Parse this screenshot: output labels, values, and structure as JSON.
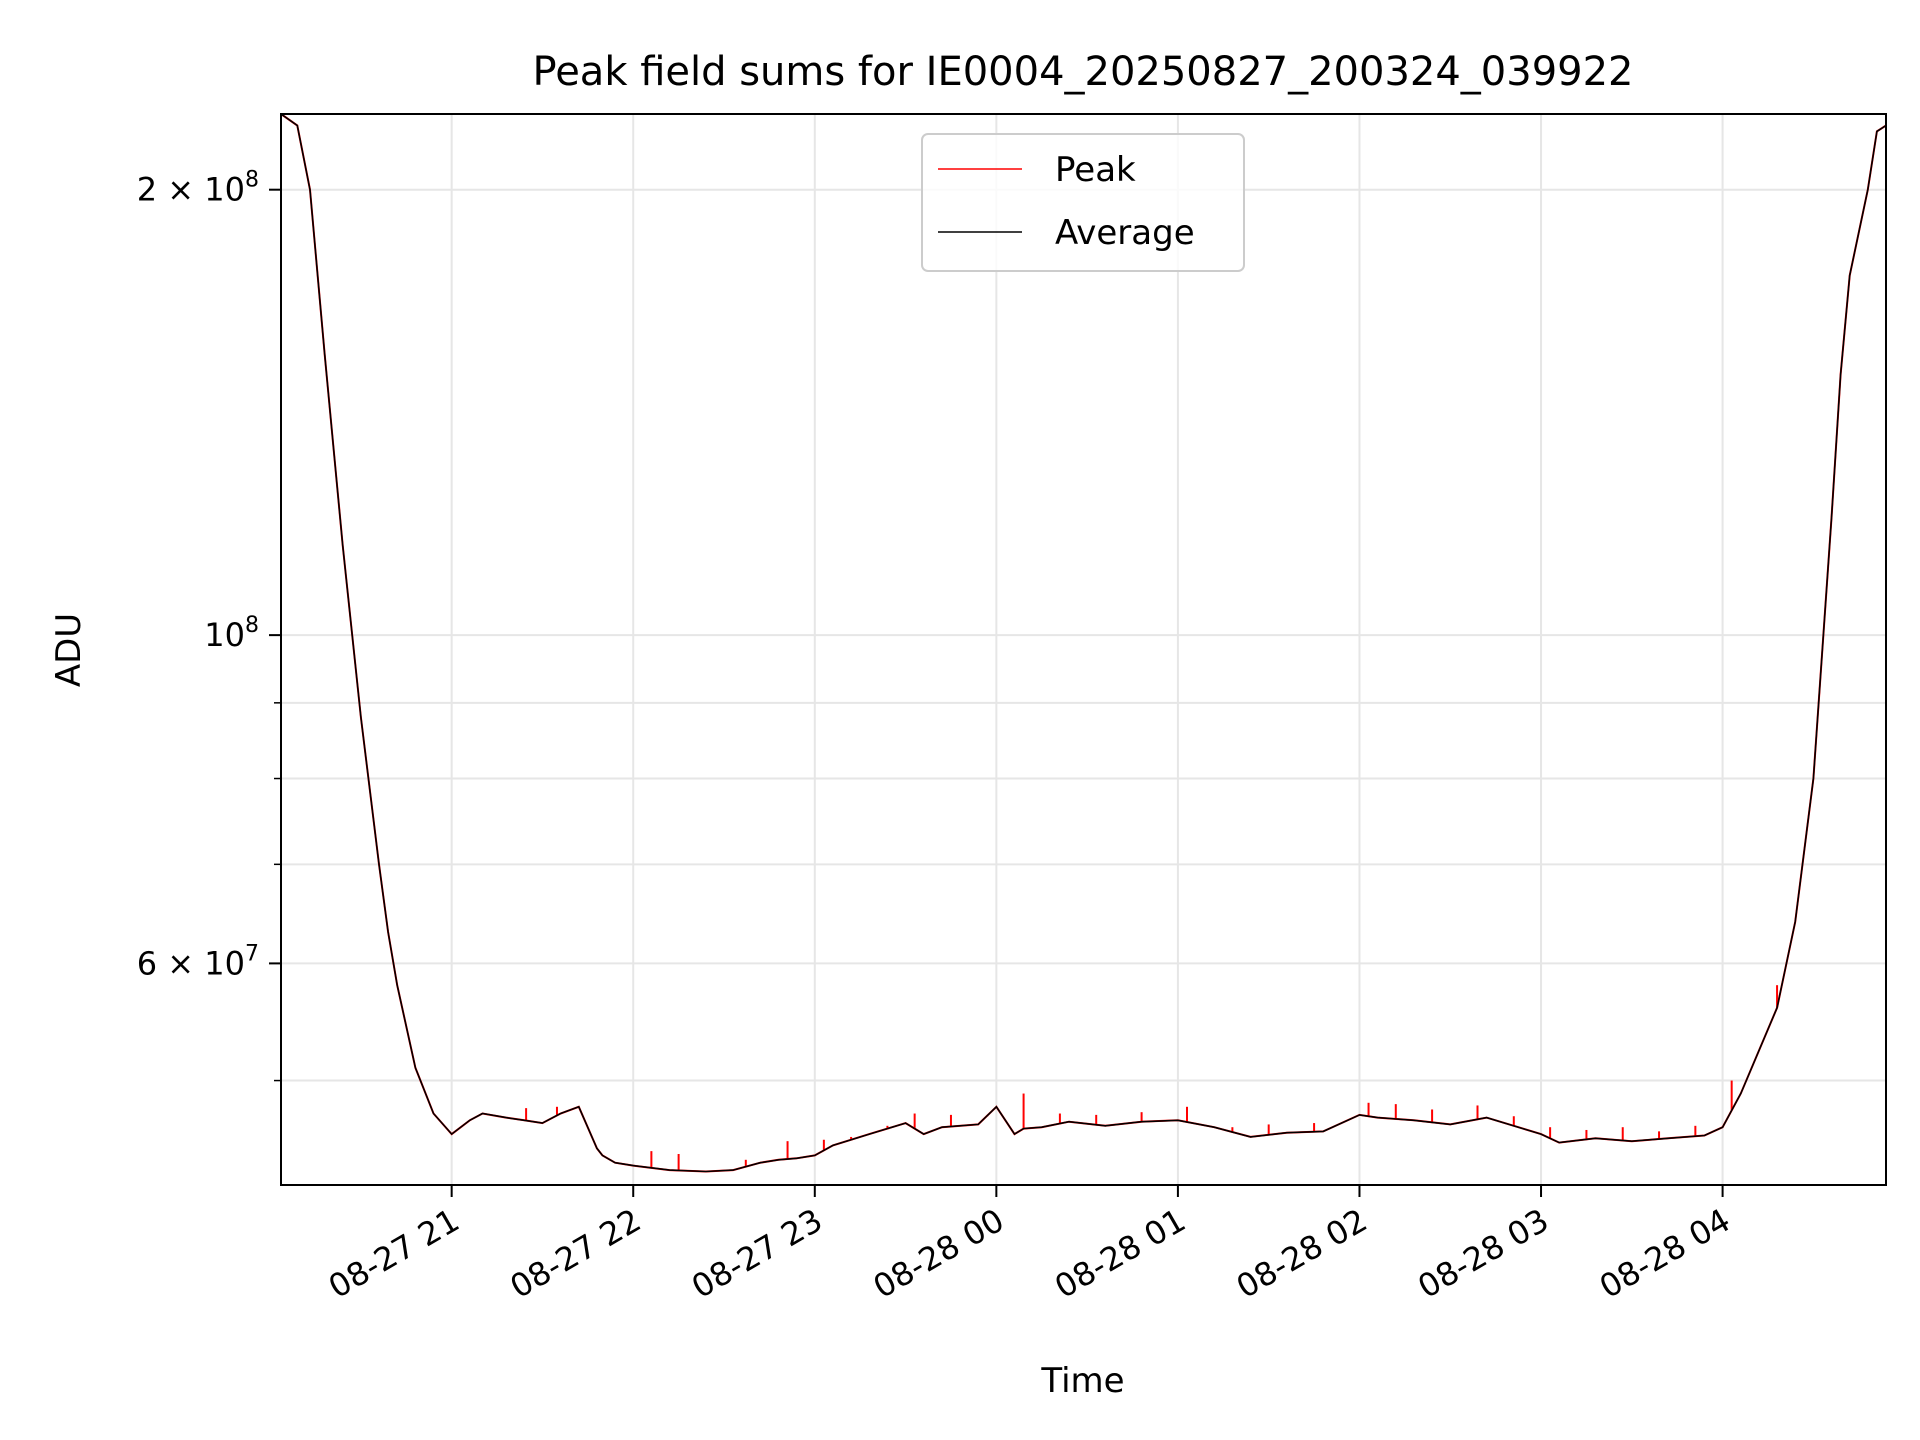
{
  "chart_data": {
    "type": "line",
    "title": "Peak field sums for IE0004_20250827_200324_039922",
    "xlabel": "Time",
    "ylabel": "ADU",
    "yscale": "log",
    "xlim_hours": [
      20.06,
      28.9
    ],
    "ylim": [
      42500000,
      225000000
    ],
    "grid": true,
    "legend": {
      "placement": "upper center"
    },
    "x_ticks": [
      {
        "label": "08-27 21",
        "hour": 21
      },
      {
        "label": "08-27 22",
        "hour": 22
      },
      {
        "label": "08-27 23",
        "hour": 23
      },
      {
        "label": "08-28 00",
        "hour": 24
      },
      {
        "label": "08-28 01",
        "hour": 25
      },
      {
        "label": "08-28 02",
        "hour": 26
      },
      {
        "label": "08-28 03",
        "hour": 27
      },
      {
        "label": "08-28 04",
        "hour": 28
      }
    ],
    "y_ticks": [
      {
        "value": 200000000,
        "mantissa": "2 × 10",
        "exp": "8"
      },
      {
        "value": 100000000,
        "mantissa": "10",
        "exp": "8"
      },
      {
        "value": 60000000,
        "mantissa": "6 × 10",
        "exp": "7"
      }
    ],
    "y_minor_ticks": [
      50000000,
      70000000,
      80000000,
      90000000
    ],
    "series": [
      {
        "name": "Average",
        "color": "#000000",
        "x": [
          20.06,
          20.15,
          20.22,
          20.3,
          20.4,
          20.5,
          20.6,
          20.65,
          20.7,
          20.8,
          20.9,
          21.0,
          21.1,
          21.17,
          21.3,
          21.4,
          21.5,
          21.6,
          21.7,
          21.8,
          21.83,
          21.9,
          22.0,
          22.2,
          22.4,
          22.55,
          22.7,
          22.8,
          22.9,
          23.0,
          23.1,
          23.3,
          23.5,
          23.6,
          23.7,
          23.9,
          24.0,
          24.1,
          24.15,
          24.25,
          24.4,
          24.6,
          24.8,
          25.0,
          25.2,
          25.4,
          25.6,
          25.8,
          26.0,
          26.1,
          26.3,
          26.5,
          26.7,
          26.9,
          27.0,
          27.1,
          27.3,
          27.5,
          27.7,
          27.9,
          28.0,
          28.1,
          28.3,
          28.4,
          28.5,
          28.6,
          28.65,
          28.7,
          28.8,
          28.85,
          28.9
        ],
        "y": [
          225000000,
          221000000,
          200000000,
          155000000,
          115000000,
          88000000,
          70000000,
          63000000,
          58000000,
          51000000,
          47500000,
          46000000,
          47000000,
          47500000,
          47200000,
          47000000,
          46800000,
          47500000,
          48000000,
          45000000,
          44500000,
          44000000,
          43800000,
          43500000,
          43400000,
          43500000,
          44000000,
          44200000,
          44300000,
          44500000,
          45200000,
          46000000,
          46800000,
          46000000,
          46500000,
          46700000,
          48000000,
          46000000,
          46400000,
          46500000,
          46900000,
          46600000,
          46900000,
          47000000,
          46500000,
          45800000,
          46100000,
          46200000,
          47400000,
          47200000,
          47000000,
          46700000,
          47200000,
          46400000,
          46000000,
          45400000,
          45700000,
          45500000,
          45700000,
          45900000,
          46500000,
          49000000,
          56000000,
          64000000,
          80000000,
          120000000,
          150000000,
          175000000,
          200000000,
          219000000,
          221000000
        ]
      },
      {
        "name": "Peak",
        "color": "#ff0000",
        "spikes": [
          {
            "x": 21.41,
            "y": 47900000
          },
          {
            "x": 21.58,
            "y": 48000000
          },
          {
            "x": 22.1,
            "y": 44800000
          },
          {
            "x": 22.25,
            "y": 44600000
          },
          {
            "x": 22.62,
            "y": 44200000
          },
          {
            "x": 22.85,
            "y": 45500000
          },
          {
            "x": 23.05,
            "y": 45600000
          },
          {
            "x": 23.2,
            "y": 45800000
          },
          {
            "x": 23.4,
            "y": 46600000
          },
          {
            "x": 23.55,
            "y": 47500000
          },
          {
            "x": 23.75,
            "y": 47400000
          },
          {
            "x": 23.95,
            "y": 47300000
          },
          {
            "x": 24.15,
            "y": 49000000
          },
          {
            "x": 24.35,
            "y": 47500000
          },
          {
            "x": 24.55,
            "y": 47400000
          },
          {
            "x": 24.8,
            "y": 47600000
          },
          {
            "x": 25.05,
            "y": 48000000
          },
          {
            "x": 25.3,
            "y": 46500000
          },
          {
            "x": 25.5,
            "y": 46700000
          },
          {
            "x": 25.75,
            "y": 46800000
          },
          {
            "x": 26.05,
            "y": 48300000
          },
          {
            "x": 26.2,
            "y": 48200000
          },
          {
            "x": 26.4,
            "y": 47800000
          },
          {
            "x": 26.65,
            "y": 48100000
          },
          {
            "x": 26.85,
            "y": 47300000
          },
          {
            "x": 27.05,
            "y": 46500000
          },
          {
            "x": 27.25,
            "y": 46300000
          },
          {
            "x": 27.45,
            "y": 46500000
          },
          {
            "x": 27.65,
            "y": 46200000
          },
          {
            "x": 27.85,
            "y": 46600000
          },
          {
            "x": 28.05,
            "y": 50000000
          },
          {
            "x": 28.3,
            "y": 58000000
          }
        ]
      }
    ]
  }
}
